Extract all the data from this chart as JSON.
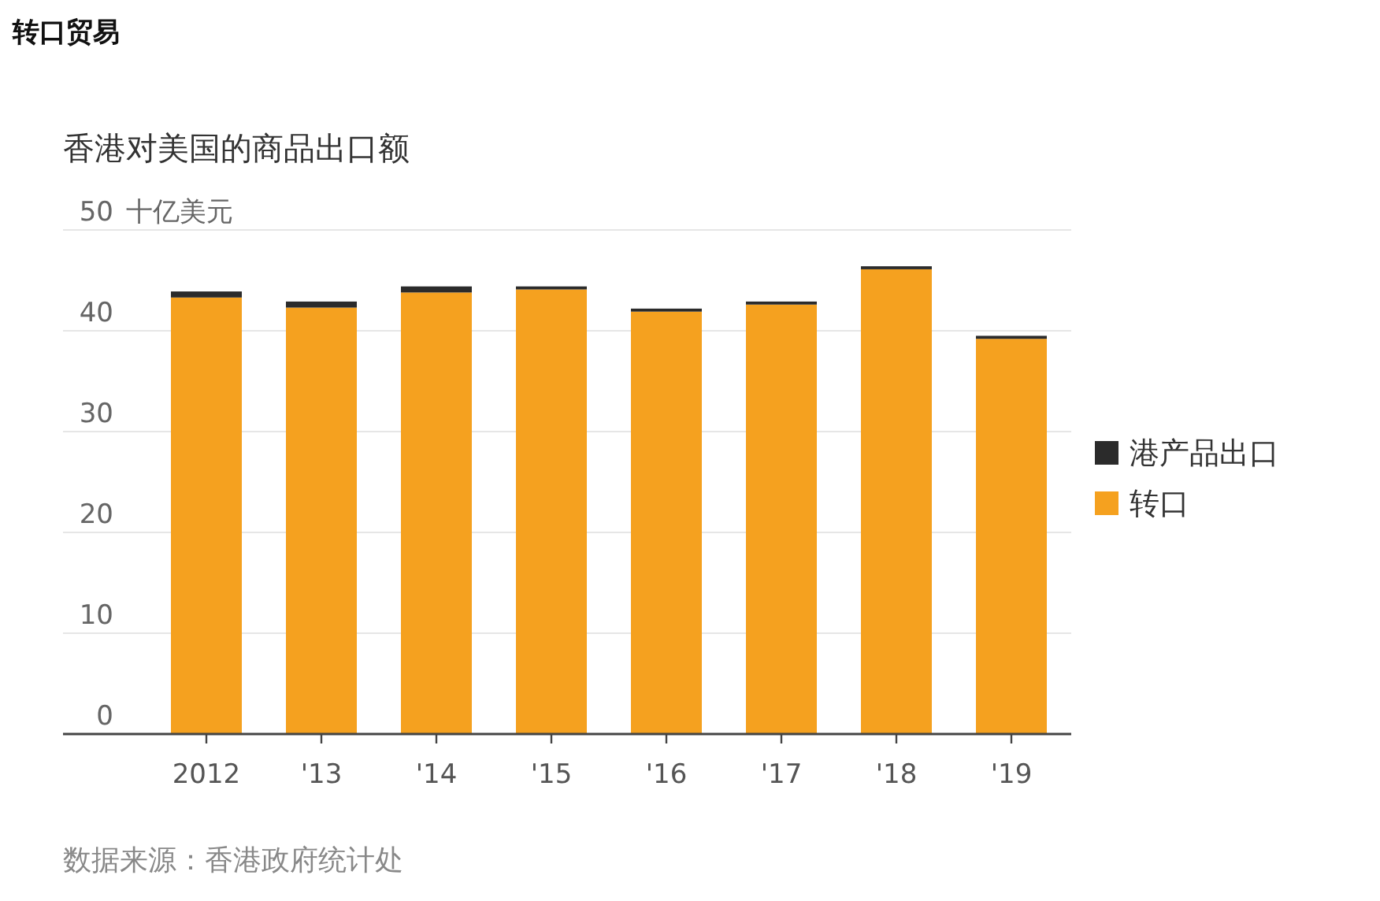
{
  "chart_data": {
    "type": "bar",
    "stacked": true,
    "title": "转口贸易",
    "subtitle": "香港对美国的商品出口额",
    "ylabel": "十亿美元",
    "categories": [
      "2012",
      "'13",
      "'14",
      "'15",
      "'16",
      "'17",
      "'18",
      "'19"
    ],
    "series": [
      {
        "name": "转口",
        "color": "#f5a11f",
        "values": [
          43.3,
          42.3,
          43.8,
          44.1,
          41.9,
          42.6,
          46.1,
          39.2
        ]
      },
      {
        "name": "港产品出口",
        "color": "#2b2b2b",
        "values": [
          0.6,
          0.6,
          0.6,
          0.3,
          0.3,
          0.3,
          0.3,
          0.3
        ]
      }
    ],
    "ylim": [
      0,
      50
    ],
    "yticks": [
      0,
      10,
      20,
      30,
      40,
      50
    ],
    "grid": "y",
    "legend": "right",
    "annotations": [
      "数据来源：香港政府统计处"
    ]
  }
}
